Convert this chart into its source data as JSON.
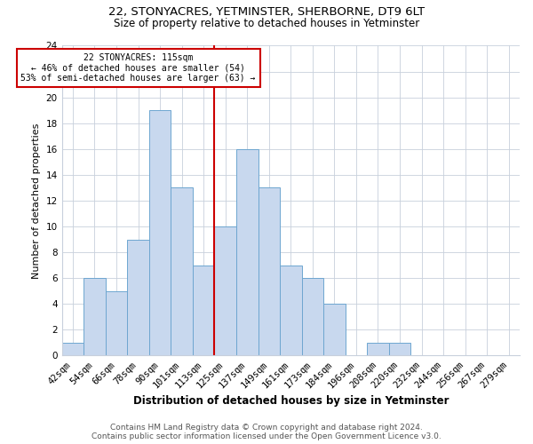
{
  "title1": "22, STONYACRES, YETMINSTER, SHERBORNE, DT9 6LT",
  "title2": "Size of property relative to detached houses in Yetminster",
  "xlabel": "Distribution of detached houses by size in Yetminster",
  "ylabel": "Number of detached properties",
  "bin_labels": [
    "42sqm",
    "54sqm",
    "66sqm",
    "78sqm",
    "90sqm",
    "101sqm",
    "113sqm",
    "125sqm",
    "137sqm",
    "149sqm",
    "161sqm",
    "173sqm",
    "184sqm",
    "196sqm",
    "208sqm",
    "220sqm",
    "232sqm",
    "244sqm",
    "256sqm",
    "267sqm",
    "279sqm"
  ],
  "values": [
    1,
    6,
    5,
    9,
    19,
    13,
    7,
    10,
    16,
    13,
    7,
    6,
    4,
    0,
    1,
    1,
    0,
    0,
    0,
    0,
    0
  ],
  "bar_color": "#c8d8ee",
  "bar_edge_color": "#6ea6d0",
  "vline_index": 6.5,
  "vline_color": "#cc0000",
  "annotation_text": "22 STONYACRES: 115sqm\n← 46% of detached houses are smaller (54)\n53% of semi-detached houses are larger (63) →",
  "annotation_box_color": "#ffffff",
  "annotation_box_edge_color": "#cc0000",
  "ylim": [
    0,
    24
  ],
  "yticks": [
    0,
    2,
    4,
    6,
    8,
    10,
    12,
    14,
    16,
    18,
    20,
    22,
    24
  ],
  "footer1": "Contains HM Land Registry data © Crown copyright and database right 2024.",
  "footer2": "Contains public sector information licensed under the Open Government Licence v3.0.",
  "background_color": "#ffffff",
  "grid_color": "#c8d0dc",
  "title1_fontsize": 9.5,
  "title2_fontsize": 8.5,
  "xlabel_fontsize": 8.5,
  "ylabel_fontsize": 8,
  "tick_fontsize": 7.5,
  "annotation_fontsize": 7,
  "footer_fontsize": 6.5
}
